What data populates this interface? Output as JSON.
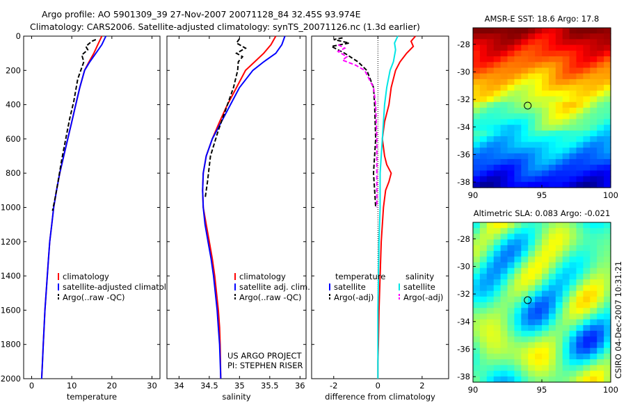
{
  "header": {
    "title_line1": "Argo profile: AO 5901309_39 27-Nov-2007 20071128_84 32.45S 93.974E",
    "title_line2": "Climatology: CARS2006. Satellite-adjusted climatology: synTS_20071126.nc (1.3d earlier)"
  },
  "credits": {
    "project": "US ARGO PROJECT",
    "pi": "PI: STEPHEN RISER",
    "timestamp": "CSIRO 04-Dec-2007 10:31:21"
  },
  "colors": {
    "climatology": "#ff0000",
    "satellite": "#0000ff",
    "argo": "#000000",
    "satellite_salinity": "#00e5e5",
    "argo_adj_salinity": "#ff00ff"
  },
  "chart_data": [
    {
      "type": "line",
      "xlabel": "temperature",
      "ylabel": "",
      "xlim": [
        -2,
        32
      ],
      "ylim": [
        2000,
        0
      ],
      "x_ticks": [
        "0",
        "10",
        "20",
        "30"
      ],
      "y_ticks": [
        "0",
        "200",
        "400",
        "600",
        "800",
        "1000",
        "1200",
        "1400",
        "1600",
        "1800",
        "2000"
      ],
      "legend": [
        "climatology",
        "satellite-adjusted climatolog",
        "Argo(..raw -QC)"
      ],
      "series": [
        {
          "name": "climatology",
          "style": "solid",
          "x": [
            17.5,
            16.5,
            15.5,
            14.3,
            13.2,
            12.0,
            11.0,
            10.0,
            9.0,
            8.0,
            7.0,
            6.2,
            5.5,
            5.0,
            4.5,
            4.2,
            3.9,
            3.6,
            3.3,
            3.1,
            2.9,
            2.7,
            2.6,
            2.5
          ],
          "y": [
            0,
            50,
            100,
            150,
            200,
            300,
            400,
            500,
            600,
            700,
            800,
            900,
            1000,
            1100,
            1200,
            1300,
            1400,
            1500,
            1600,
            1700,
            1800,
            1900,
            1950,
            2000
          ]
        },
        {
          "name": "satellite-adjusted climatolog",
          "style": "solid",
          "x": [
            18.5,
            17.5,
            16.0,
            14.5,
            13.2,
            12.0,
            11.0,
            10.0,
            9.0,
            8.0,
            7.0,
            6.2,
            5.5,
            5.0,
            4.5,
            4.2,
            3.9,
            3.6,
            3.3,
            3.1,
            2.9,
            2.7,
            2.6,
            2.5
          ],
          "y": [
            0,
            50,
            100,
            150,
            200,
            300,
            400,
            500,
            600,
            700,
            800,
            900,
            1000,
            1100,
            1200,
            1300,
            1400,
            1500,
            1600,
            1700,
            1800,
            1900,
            1950,
            2000
          ]
        },
        {
          "name": "Argo(..raw -QC)",
          "style": "dashed",
          "x": [
            16.0,
            15.0,
            13.5,
            14.0,
            12.5,
            13.0,
            11.5,
            10.5,
            9.5,
            8.5,
            7.5,
            6.5,
            5.8,
            5.2
          ],
          "y": [
            20,
            30,
            60,
            80,
            110,
            150,
            250,
            380,
            480,
            600,
            720,
            860,
            950,
            1020
          ]
        }
      ]
    },
    {
      "type": "line",
      "xlabel": "salinity",
      "ylabel": "",
      "xlim": [
        33.8,
        36.1
      ],
      "ylim": [
        2000,
        0
      ],
      "x_ticks": [
        "34",
        "34.5",
        "35",
        "35.5",
        "36"
      ],
      "legend": [
        "climatology",
        "satellite adj. clim.",
        "Argo(..raw -QC)"
      ],
      "series": [
        {
          "name": "climatology",
          "style": "solid",
          "x": [
            35.6,
            35.52,
            35.4,
            35.25,
            35.1,
            34.95,
            34.8,
            34.67,
            34.55,
            34.45,
            34.4,
            34.39,
            34.4,
            34.45,
            34.5,
            34.55,
            34.59,
            34.62,
            34.65,
            34.67,
            34.68,
            34.69
          ],
          "y": [
            0,
            50,
            100,
            150,
            200,
            300,
            400,
            500,
            600,
            700,
            800,
            900,
            1000,
            1100,
            1200,
            1300,
            1400,
            1500,
            1600,
            1700,
            1800,
            2000
          ]
        },
        {
          "name": "satellite adj. clim.",
          "style": "solid",
          "x": [
            35.75,
            35.7,
            35.6,
            35.4,
            35.22,
            35.0,
            34.85,
            34.7,
            34.55,
            34.45,
            34.4,
            34.39,
            34.4,
            34.43,
            34.48,
            34.53,
            34.57,
            34.6,
            34.63,
            34.65,
            34.67,
            34.69
          ],
          "y": [
            0,
            50,
            100,
            150,
            200,
            300,
            400,
            500,
            600,
            700,
            800,
            900,
            1000,
            1100,
            1200,
            1300,
            1400,
            1500,
            1600,
            1700,
            1800,
            2000
          ]
        },
        {
          "name": "Argo(..raw -QC)",
          "style": "dashed",
          "x": [
            35.0,
            34.95,
            35.1,
            34.95,
            35.05,
            34.98,
            34.97,
            34.9,
            34.8,
            34.65,
            34.52,
            34.47,
            34.43
          ],
          "y": [
            15,
            40,
            70,
            100,
            120,
            150,
            200,
            300,
            400,
            550,
            700,
            850,
            950
          ]
        }
      ]
    },
    {
      "type": "line",
      "xlabel": "difference from climatology",
      "ylabel": "",
      "xlim": [
        -3,
        3.2
      ],
      "ylim": [
        2000,
        0
      ],
      "x_ticks": [
        "-2",
        "0",
        "2"
      ],
      "legend_temperature": [
        "temperature",
        "satellite",
        "Argo(-adj)"
      ],
      "legend_salinity": [
        "salinity",
        "satellite",
        "Argo(-adj)"
      ],
      "series": [
        {
          "name": "satellite",
          "group": "temperature",
          "style": "solid",
          "x": [
            1.7,
            1.5,
            1.6,
            1.3,
            1.0,
            0.8,
            0.6,
            0.5,
            0.3,
            0.2,
            0.3,
            0.4,
            0.6,
            0.5,
            0.35,
            0.25,
            0.15,
            0.1,
            0.05,
            0.02,
            0.0,
            0.0
          ],
          "y": [
            0,
            30,
            60,
            100,
            150,
            200,
            300,
            400,
            500,
            600,
            700,
            750,
            800,
            850,
            900,
            1000,
            1200,
            1400,
            1600,
            1800,
            1900,
            2000
          ]
        },
        {
          "name": "Argo(-adj)",
          "group": "temperature",
          "style": "dashed",
          "x": [
            -1.6,
            -2.0,
            -1.3,
            -2.1,
            -1.5,
            -0.9,
            -0.5,
            -0.2,
            -0.15,
            -0.1,
            -0.2,
            -0.15,
            -0.1
          ],
          "y": [
            10,
            20,
            40,
            60,
            100,
            150,
            200,
            300,
            400,
            600,
            800,
            900,
            1000
          ]
        },
        {
          "name": "satellite",
          "group": "salinity",
          "style": "solid",
          "x": [
            0.9,
            0.75,
            0.8,
            0.7,
            0.55,
            0.4,
            0.3,
            0.2,
            0.1,
            0.1,
            0.05,
            0.0,
            0.0
          ],
          "y": [
            0,
            40,
            80,
            150,
            200,
            300,
            400,
            600,
            800,
            1000,
            1200,
            1600,
            2000
          ]
        },
        {
          "name": "Argo(-adj)",
          "group": "salinity",
          "style": "dashed",
          "x": [
            -1.8,
            -1.5,
            -1.8,
            -1.4,
            -1.6,
            -1.0,
            -0.6,
            -0.2,
            -0.1,
            -0.05,
            -0.05,
            -0.05
          ],
          "y": [
            50,
            70,
            90,
            120,
            140,
            170,
            200,
            300,
            400,
            600,
            800,
            1000
          ]
        }
      ]
    },
    {
      "type": "heatmap",
      "title": "AMSR-E SST: 18.6 Argo: 17.8",
      "xlim": [
        90,
        100
      ],
      "ylim": [
        -38.4,
        -26.8
      ],
      "x_ticks": [
        "90",
        "95",
        "100"
      ],
      "y_ticks": [
        "-28",
        "-30",
        "-32",
        "-34",
        "-36",
        "-38"
      ],
      "data_extent_lon": [
        90,
        100
      ],
      "marker": {
        "lon": 93.974,
        "lat": -32.45
      }
    },
    {
      "type": "heatmap",
      "title": "Altimetric SLA: 0.083 Argo: -0.021",
      "xlim": [
        90,
        100
      ],
      "ylim": [
        -38.4,
        -26.8
      ],
      "x_ticks": [
        "90",
        "95",
        "100"
      ],
      "y_ticks": [
        "-28",
        "-30",
        "-32",
        "-34",
        "-36",
        "-38"
      ],
      "data_extent_lon": [
        90,
        100
      ],
      "marker": {
        "lon": 93.974,
        "lat": -32.45
      }
    }
  ]
}
